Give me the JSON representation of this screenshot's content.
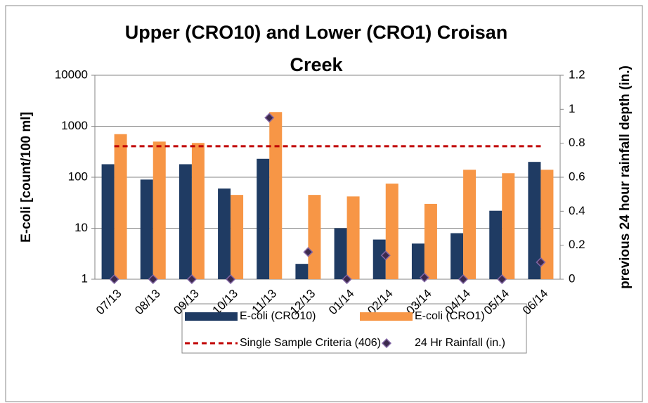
{
  "chart_data": {
    "type": "bar",
    "title": [
      "Upper (CRO10) and Lower (CRO1) Croisan",
      "Creek"
    ],
    "ylabel": "E-coli [count/100 ml]",
    "y2label": "previous 24 hour  rainfall depth (in.)",
    "categories": [
      "07/13",
      "08/13",
      "09/13",
      "10/13",
      "11/13",
      "12/13",
      "01/14",
      "02/14",
      "03/14",
      "04/14",
      "05/14",
      "06/14"
    ],
    "ylog": true,
    "ylim": [
      1,
      10000
    ],
    "yticks": [
      1,
      10,
      100,
      1000,
      10000
    ],
    "y2lim": [
      0,
      1.2
    ],
    "y2ticks": [
      0,
      0.2,
      0.4,
      0.6,
      0.8,
      1,
      1.2
    ],
    "grid": true,
    "series": [
      {
        "name": "E-coli (CRO10)",
        "type": "bar",
        "color": "#1f3b63",
        "values": [
          180,
          90,
          180,
          60,
          230,
          2,
          10,
          6,
          5,
          8,
          22,
          200
        ]
      },
      {
        "name": "E-coli (CRO1)",
        "type": "bar",
        "color": "#f79646",
        "values": [
          700,
          500,
          470,
          45,
          1900,
          45,
          42,
          75,
          30,
          140,
          120,
          140
        ]
      },
      {
        "name": "Single Sample Criteria (406)",
        "type": "line",
        "color": "#c00000",
        "values": [
          406,
          406,
          406,
          406,
          406,
          406,
          406,
          406,
          406,
          406,
          406,
          406
        ]
      },
      {
        "name": "24 Hr Rainfall (in.)",
        "type": "scatter",
        "axis": "y2",
        "color": "#3c2a4d",
        "values": [
          0,
          0,
          0,
          0,
          0.95,
          0.16,
          0,
          0.14,
          0.01,
          0,
          0,
          0.1
        ]
      }
    ]
  }
}
